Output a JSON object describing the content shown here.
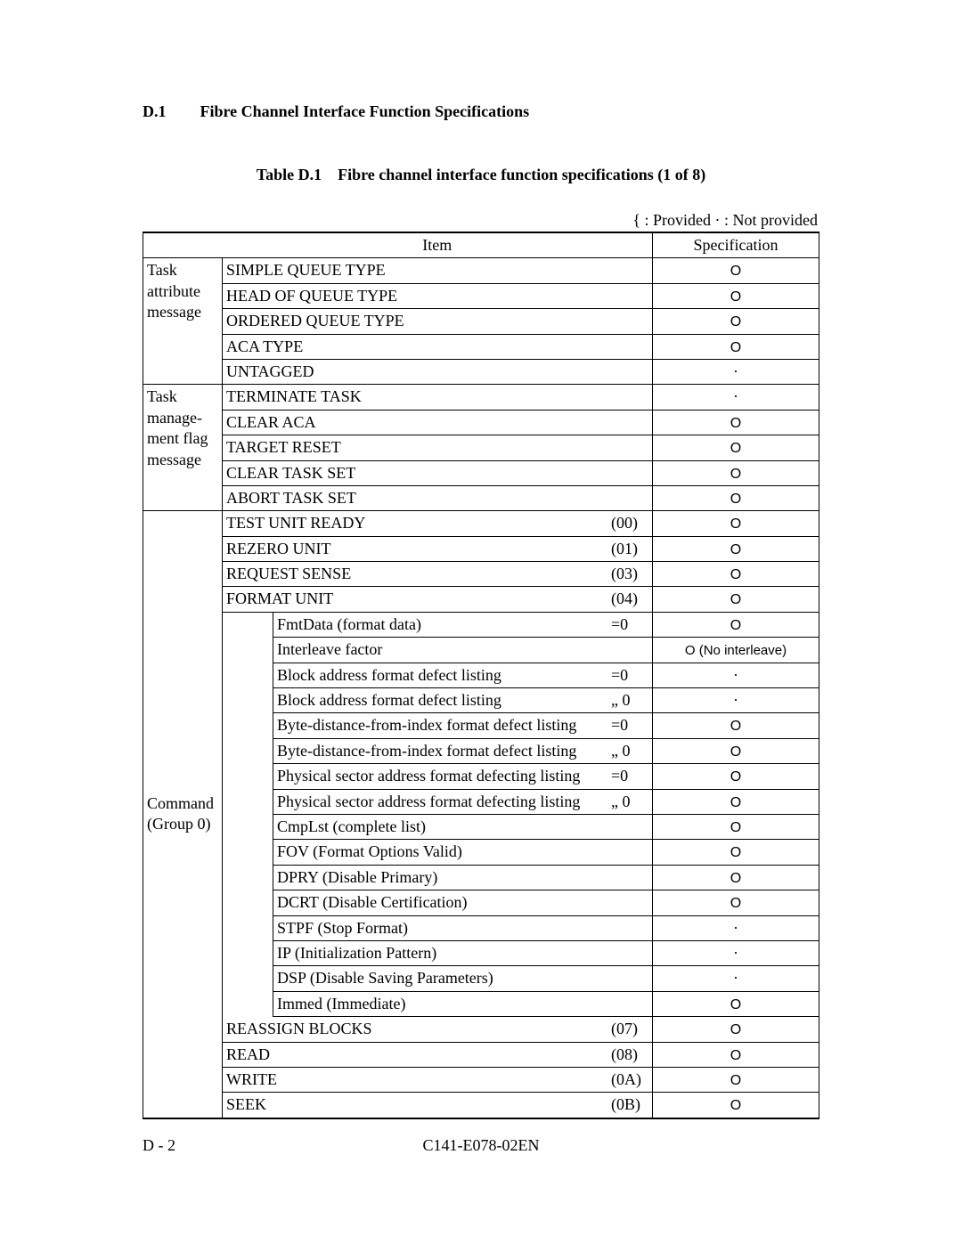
{
  "sectionNumber": "D.1",
  "sectionTitle": "Fibre Channel Interface Function Specifications",
  "tableCaptionPrefix": "Table D.1",
  "tableCaptionText": "Fibre channel interface function specifications (1 of 8)",
  "legend": "{  :  Provided     · :  Not provided",
  "headerItem": "Item",
  "headerSpec": "Specification",
  "symbolProvided": "O",
  "symbolNot": "·",
  "noInterleave": "O (No interleave)",
  "cat1": "Task attribute message",
  "cat2": "Task manage-ment flag message",
  "cat3a": "Command",
  "cat3b": "(Group 0)",
  "rows": {
    "r1": "SIMPLE QUEUE TYPE",
    "r2": "HEAD OF QUEUE TYPE",
    "r3": "ORDERED QUEUE TYPE",
    "r4": "ACA TYPE",
    "r5": "UNTAGGED",
    "r6": "TERMINATE TASK",
    "r7": "CLEAR ACA",
    "r8": "TARGET RESET",
    "r9": "CLEAR TASK SET",
    "r10": "ABORT TASK SET",
    "r11": "TEST UNIT READY",
    "r12": "REZERO UNIT",
    "r13": "REQUEST SENSE",
    "r14": "FORMAT UNIT",
    "r15": "FmtData (format data)",
    "r16": "Interleave factor",
    "r17": "Block address format defect listing",
    "r18": "Block address format defect listing",
    "r19": "Byte-distance-from-index format defect listing",
    "r20": "Byte-distance-from-index format defect listing",
    "r21": "Physical sector address format defecting listing",
    "r22": "Physical sector address format defecting listing",
    "r23": "CmpLst (complete list)",
    "r24": "FOV (Format Options Valid)",
    "r25": "DPRY (Disable Primary)",
    "r26": "DCRT (Disable Certification)",
    "r27": "STPF (Stop Format)",
    "r28": "IP (Initialization Pattern)",
    "r29": "DSP (Disable Saving Parameters)",
    "r30": "Immed (Immediate)",
    "r31": "REASSIGN BLOCKS",
    "r32": "READ",
    "r33": "WRITE",
    "r34": "SEEK"
  },
  "codes": {
    "c11": "(00)",
    "c12": "(01)",
    "c13": "(03)",
    "c14": "(04)",
    "eq0": "=0",
    "ne0": "„ 0",
    "c31": "(07)",
    "c32": "(08)",
    "c33": "(0A)",
    "c34": "(0B)"
  },
  "footerLeft": "D - 2",
  "footerCenter": "C141-E078-02EN"
}
